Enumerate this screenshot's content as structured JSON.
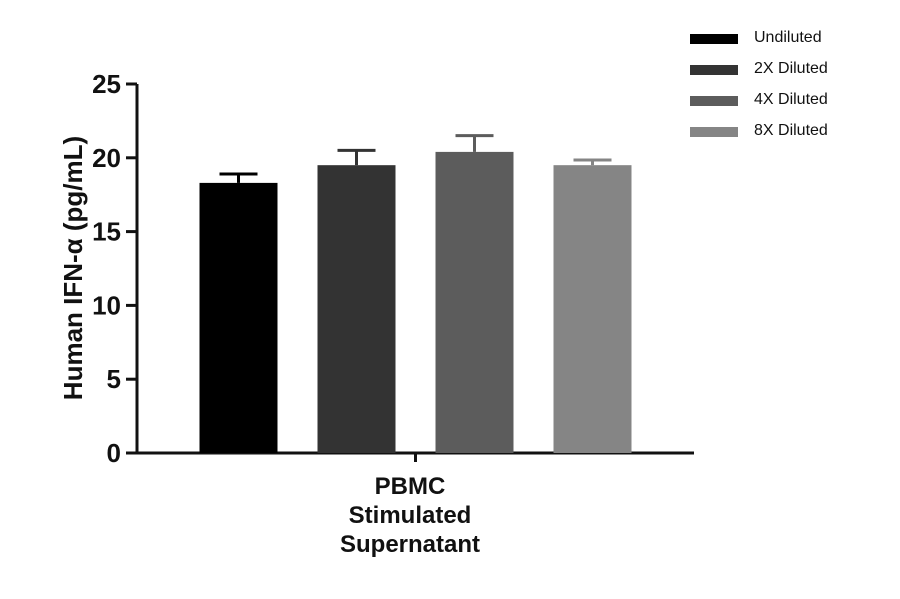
{
  "chart_data": {
    "type": "bar",
    "title": "",
    "xlabel": "",
    "ylabel": "Human IFN-α (pg/mL)",
    "ylim": [
      0,
      25
    ],
    "yticks": [
      0,
      5,
      10,
      15,
      20,
      25
    ],
    "categories": [
      "PBMC\nStimulated\nSupernatant"
    ],
    "series": [
      {
        "name": "Undiluted",
        "values": [
          18.3
        ],
        "error": [
          0.6
        ],
        "color": "#000000"
      },
      {
        "name": "2X Diluted",
        "values": [
          19.5
        ],
        "error": [
          1.0
        ],
        "color": "#333333"
      },
      {
        "name": "4X Diluted",
        "values": [
          20.4
        ],
        "error": [
          1.1
        ],
        "color": "#5c5c5c"
      },
      {
        "name": "8X Diluted",
        "values": [
          19.5
        ],
        "error": [
          0.35
        ],
        "color": "#858585"
      }
    ],
    "legend_position": "top-right",
    "grid": false
  }
}
